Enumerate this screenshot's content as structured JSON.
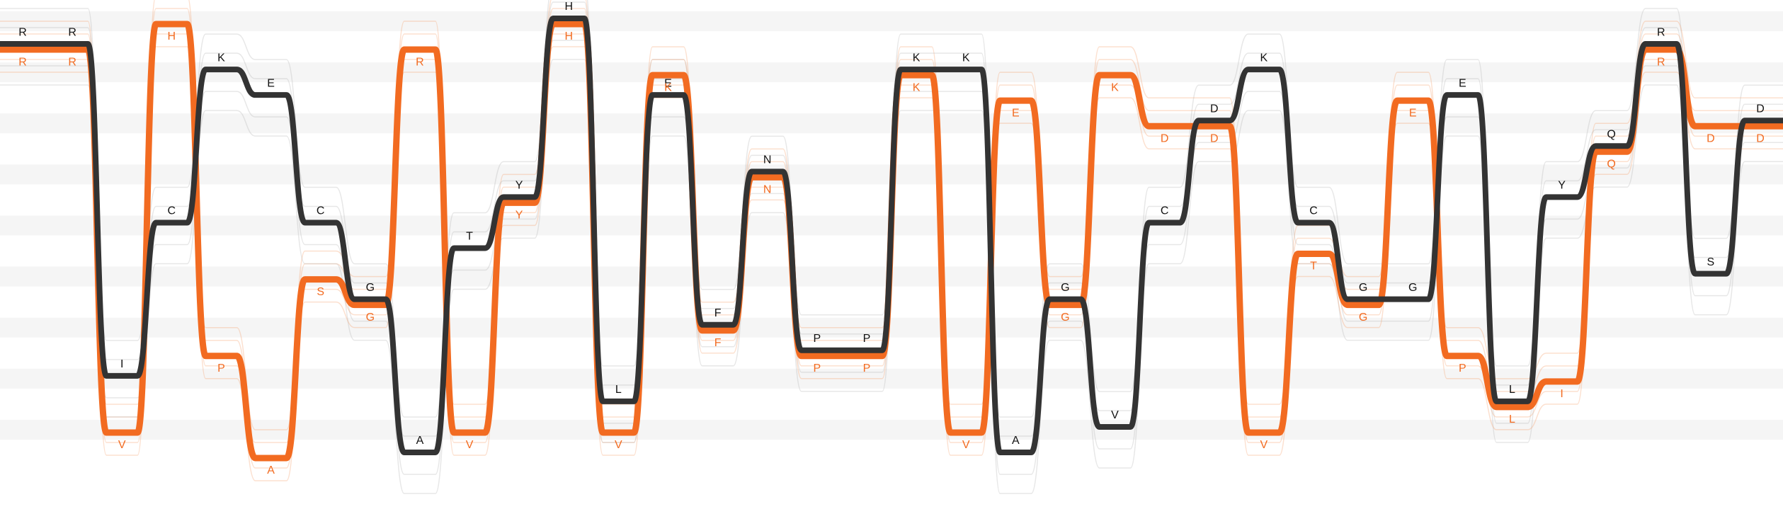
{
  "rows": [
    "H",
    "R",
    "K",
    "E",
    "D",
    "Q",
    "N",
    "Y",
    "C",
    "T",
    "S",
    "G",
    "F",
    "P",
    "I",
    "L",
    "V",
    "A"
  ],
  "columns": [
    {
      "dark": "R",
      "orange": "R"
    },
    {
      "dark": "R",
      "orange": "R"
    },
    {
      "dark": "I",
      "orange": "V"
    },
    {
      "dark": "C",
      "orange": "H"
    },
    {
      "dark": "K",
      "orange": "P"
    },
    {
      "dark": "E",
      "orange": "A"
    },
    {
      "dark": "C",
      "orange": "S"
    },
    {
      "dark": "G",
      "orange": "G"
    },
    {
      "dark": "A",
      "orange": "R"
    },
    {
      "dark": "T",
      "orange": "V"
    },
    {
      "dark": "Y",
      "orange": "Y"
    },
    {
      "dark": "H",
      "orange": "H"
    },
    {
      "dark": "L",
      "orange": "V"
    },
    {
      "dark": "E",
      "orange": "K"
    },
    {
      "dark": "F",
      "orange": "F"
    },
    {
      "dark": "N",
      "orange": "N"
    },
    {
      "dark": "P",
      "orange": "P"
    },
    {
      "dark": "P",
      "orange": "P"
    },
    {
      "dark": "K",
      "orange": "K"
    },
    {
      "dark": "K",
      "orange": "V"
    },
    {
      "dark": "A",
      "orange": "E"
    },
    {
      "dark": "G",
      "orange": "G"
    },
    {
      "dark": "V",
      "orange": "K"
    },
    {
      "dark": "C",
      "orange": "D"
    },
    {
      "dark": "D",
      "orange": "D"
    },
    {
      "dark": "K",
      "orange": "V"
    },
    {
      "dark": "C",
      "orange": "T"
    },
    {
      "dark": "G",
      "orange": "G"
    },
    {
      "dark": "G",
      "orange": "E"
    },
    {
      "dark": "E",
      "orange": "P"
    },
    {
      "dark": "L",
      "orange": "L"
    },
    {
      "dark": "Y",
      "orange": "I"
    },
    {
      "dark": "Q",
      "orange": "Q"
    },
    {
      "dark": "R",
      "orange": "R"
    },
    {
      "dark": "S",
      "orange": "D"
    },
    {
      "dark": "D",
      "orange": "D"
    }
  ]
}
